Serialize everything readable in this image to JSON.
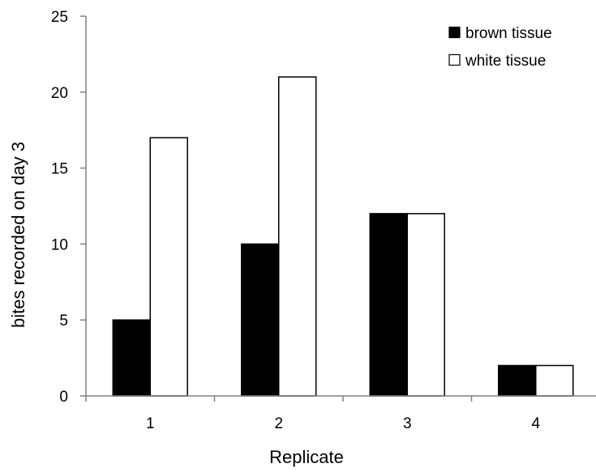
{
  "chart_data": {
    "type": "bar",
    "title": "",
    "xlabel": "Replicate",
    "ylabel": "bites recorded on day 3",
    "categories": [
      "1",
      "2",
      "3",
      "4"
    ],
    "ylim": [
      0,
      25
    ],
    "yticks": [
      0,
      5,
      10,
      15,
      20,
      25
    ],
    "grid": false,
    "legend_position": "top-right",
    "series": [
      {
        "name": "brown tissue",
        "values": [
          5,
          10,
          12,
          2
        ],
        "fill": "#000000",
        "stroke": "#000000"
      },
      {
        "name": "white tissue",
        "values": [
          17,
          21,
          12,
          2
        ],
        "fill": "#ffffff",
        "stroke": "#000000"
      }
    ]
  }
}
